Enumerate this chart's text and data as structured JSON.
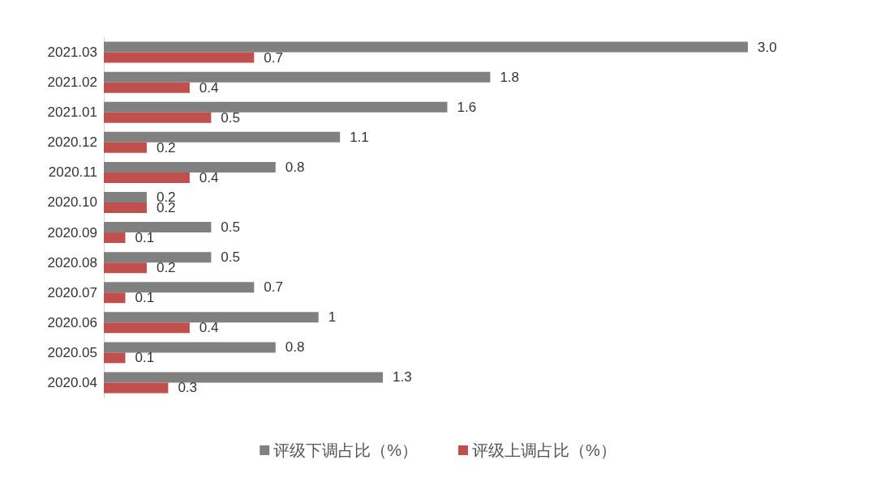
{
  "chart_data": {
    "type": "bar",
    "orientation": "horizontal",
    "categories": [
      "2021.03",
      "2021.02",
      "2021.01",
      "2020.12",
      "2020.11",
      "2020.10",
      "2020.09",
      "2020.08",
      "2020.07",
      "2020.06",
      "2020.05",
      "2020.04"
    ],
    "series": [
      {
        "name": "评级下调占比（%）",
        "color": "#808080",
        "values": [
          3.0,
          1.8,
          1.6,
          1.1,
          0.8,
          0.2,
          0.5,
          0.5,
          0.7,
          1,
          0.8,
          1.3
        ],
        "value_labels": [
          "3.0",
          "1.8",
          "1.6",
          "1.1",
          "0.8",
          "0.2",
          "0.5",
          "0.5",
          "0.7",
          "1",
          "0.8",
          "1.3"
        ]
      },
      {
        "name": "评级上调占比（%）",
        "color": "#c0504d",
        "values": [
          0.7,
          0.4,
          0.5,
          0.2,
          0.4,
          0.2,
          0.1,
          0.2,
          0.1,
          0.4,
          0.1,
          0.3
        ],
        "value_labels": [
          "0.7",
          "0.4",
          "0.5",
          "0.2",
          "0.4",
          "0.2",
          "0.1",
          "0.2",
          "0.1",
          "0.4",
          "0.1",
          "0.3"
        ]
      }
    ],
    "legend": "bottom"
  }
}
